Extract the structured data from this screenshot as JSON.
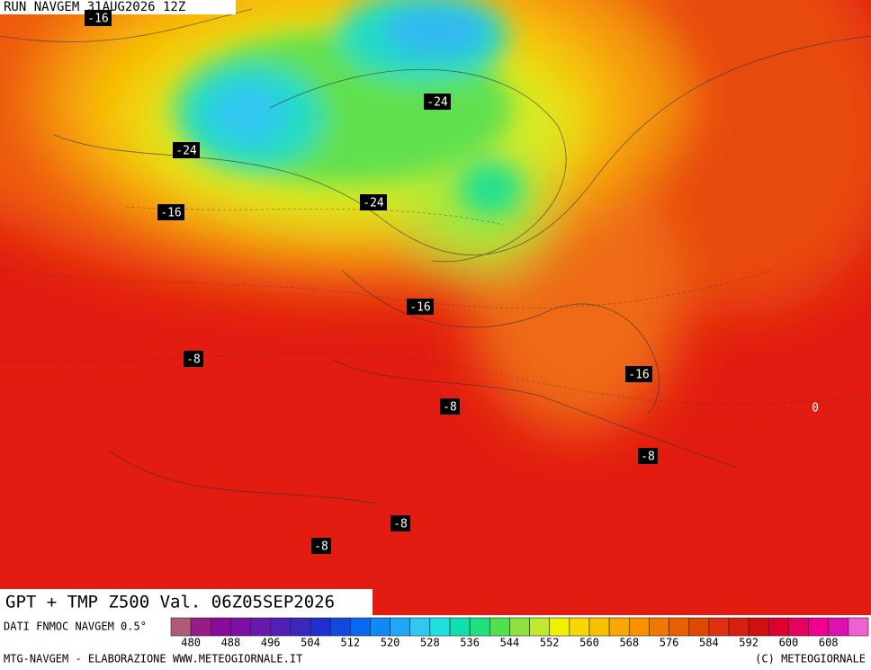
{
  "header": "RUN NAVGEM 31AUG2026 12Z",
  "map": {
    "contour_labels": [
      -16,
      -24,
      -24,
      -24,
      -16,
      -16,
      -8,
      -16,
      -8,
      0,
      -8,
      -8,
      -8
    ]
  },
  "title": "GPT + TMP Z500 Val. 06Z05SEP2026",
  "source": "DATI FNMOC NAVGEM 0.5°",
  "colorbar": {
    "colors": [
      "#b05a7a",
      "#9b1a8a",
      "#8a0a9a",
      "#7a10a5",
      "#6a18b0",
      "#5020b8",
      "#3a28c0",
      "#2030d0",
      "#1048e0",
      "#0868f0",
      "#1088f8",
      "#20a8f8",
      "#30c8f0",
      "#20e0e0",
      "#10e0b0",
      "#20e080",
      "#50e050",
      "#90e040",
      "#c0e830",
      "#f0f000",
      "#f8d800",
      "#f8c000",
      "#f8a800",
      "#f89000",
      "#f07800",
      "#e86000",
      "#e04800",
      "#e03010",
      "#d82010",
      "#d01010",
      "#e00030",
      "#e80060",
      "#f00090",
      "#e010b0",
      "#f060d0"
    ],
    "ticks": [
      480,
      488,
      496,
      504,
      512,
      520,
      528,
      536,
      544,
      552,
      560,
      568,
      576,
      584,
      592,
      600,
      608
    ]
  },
  "footer_left": "MTG-NAVGEM - ELABORAZIONE WWW.METEOGIORNALE.IT",
  "footer_right": "(C) METEOGIORNALE"
}
